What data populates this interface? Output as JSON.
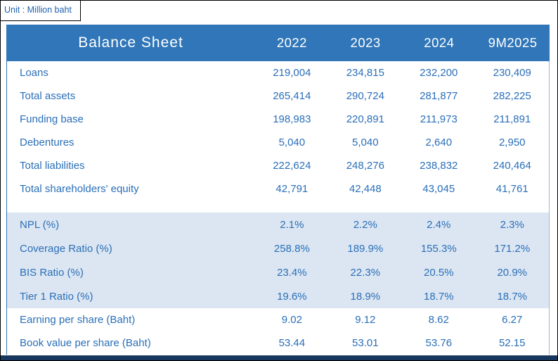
{
  "unit_label": "Unit : Million baht",
  "colors": {
    "header_bg": "#3076B8",
    "band_bg": "#DCE6F2",
    "text_blue": "#2A6FB8",
    "bottom_bar": "#17375E"
  },
  "table": {
    "title": "Balance Sheet",
    "columns": [
      "2022",
      "2023",
      "2024",
      "9M2025"
    ],
    "sections": [
      {
        "name": "balance_sheet_items",
        "rows": [
          {
            "label": "Loans",
            "values": [
              "219,004",
              "234,815",
              "232,200",
              "230,409"
            ]
          },
          {
            "label": "Total assets",
            "values": [
              "265,414",
              "290,724",
              "281,877",
              "282,225"
            ]
          },
          {
            "label": "Funding base",
            "values": [
              "198,983",
              "220,891",
              "211,973",
              "211,891"
            ]
          },
          {
            "label": "Debentures",
            "values": [
              "5,040",
              "5,040",
              "2,640",
              "2,950"
            ]
          },
          {
            "label": "Total liabilities",
            "values": [
              "222,624",
              "248,276",
              "238,832",
              "240,464"
            ]
          },
          {
            "label": "Total shareholders' equity",
            "values": [
              "42,791",
              "42,448",
              "43,045",
              "41,761"
            ]
          }
        ]
      },
      {
        "name": "financial_ratios",
        "rows": [
          {
            "label": "NPL (%)",
            "values": [
              "2.1%",
              "2.2%",
              "2.4%",
              "2.3%"
            ]
          },
          {
            "label": "Coverage Ratio (%)",
            "values": [
              "258.8%",
              "189.9%",
              "155.3%",
              "171.2%"
            ]
          },
          {
            "label": "BIS Ratio (%)",
            "values": [
              "23.4%",
              "22.3%",
              "20.5%",
              "20.9%"
            ]
          },
          {
            "label": "Tier 1 Ratio (%)",
            "values": [
              "19.6%",
              "18.9%",
              "18.7%",
              "18.7%"
            ]
          }
        ]
      },
      {
        "name": "per_share_data",
        "rows": [
          {
            "label": "Earning per share (Baht)",
            "values": [
              "9.02",
              "9.12",
              "8.62",
              "6.27"
            ]
          },
          {
            "label": "Book value per share (Baht)",
            "values": [
              "53.44",
              "53.01",
              "53.76",
              "52.15"
            ]
          }
        ]
      }
    ]
  }
}
